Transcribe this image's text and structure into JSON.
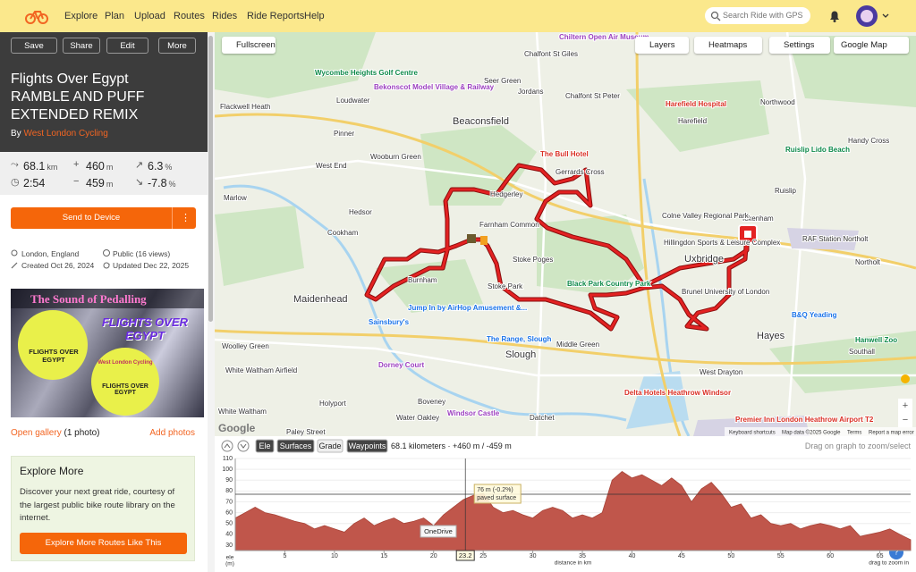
{
  "nav": {
    "links": [
      "Explore",
      "Plan",
      "Upload",
      "Routes",
      "Rides",
      "Ride Reports",
      "Help"
    ],
    "search": "Search Ride with GPS"
  },
  "route": {
    "actions": [
      "Save",
      "Share",
      "Edit",
      "More"
    ],
    "title_lines": [
      "Flights Over Egypt",
      "RAMBLE AND PUFF",
      "EXTENDED REMIX"
    ],
    "by": "By",
    "author": "West London Cycling",
    "stats": [
      {
        "value": "68.1",
        "unit": "km"
      },
      {
        "value": "460",
        "unit": "m"
      },
      {
        "value": "6.3",
        "unit": "%"
      },
      {
        "value": "2:54",
        "unit": ""
      },
      {
        "value": "459",
        "unit": "m"
      },
      {
        "value": "-7.8",
        "unit": "%"
      }
    ],
    "send": "Send to Device",
    "info": [
      "London, England",
      "Public (16 views)",
      "Created Oct 26, 2024",
      "Updated Dec 22, 2025"
    ],
    "gallery": "Open gallery",
    "gallery_count": "(1 photo)",
    "add_photos": "Add photos"
  },
  "image": {
    "banner": "The Sound of Pedalling",
    "side": "FLIGHTS OVER EGYPT",
    "club": "West London Cycling",
    "disc": "FLIGHTS OVER EGYPT"
  },
  "explore": {
    "title": "Explore More",
    "text": "Discover your next great ride, courtesy of the largest public bike route library on the internet.",
    "button": "Explore More Routes Like This"
  },
  "map": {
    "controls": [
      "Fullscreen",
      "Layers",
      "Heatmaps",
      "Settings",
      "Google Map"
    ],
    "labels": [
      "Chiltern Open Air Museum",
      "Chalfont St Giles",
      "Wycombe Heights Golf Centre",
      "Bekonscot Model Village & Railway",
      "Loudwater",
      "Seer Green",
      "Jordans",
      "Chalfont St Peter",
      "Beaconsfield",
      "Harefield Hospital",
      "Harefield",
      "Northwood",
      "Handy Cross",
      "Flackwell Heath",
      "Pinner",
      "Wooburn Green",
      "West End",
      "The Bull Hotel",
      "Gerrards Cross",
      "Hedgerley",
      "Ruislip Lido Beach",
      "Ruislip",
      "Ickenham",
      "Marlow",
      "Hedsor",
      "Cookham",
      "Farnham Common",
      "Colne Valley Regional Park",
      "Hillingdon Sports & Leisure Complex",
      "RAF Station Northolt",
      "Uxbridge",
      "Northolt",
      "Burnham",
      "Stoke Poges",
      "Black Park Country Park",
      "Brunel University of London",
      "Stoke Park",
      "Maidenhead",
      "Jump In by AirHop Amusement &...",
      "Sainsbury's",
      "Hayes",
      "B&Q Yeading",
      "Woolley Green",
      "The Range, Slough",
      "Middle Green",
      "Slough",
      "Hanwell Zoo",
      "White Waltham Airfield",
      "Dorney Court",
      "West Drayton",
      "Southall",
      "Holyport",
      "Delta Hotels Heathrow Windsor",
      "Boveney",
      "Windsor Castle",
      "Water Oakley",
      "Datchet",
      "White Waltham",
      "Paley Street",
      "Premier Inn London Heathrow Airport T2"
    ],
    "footer": [
      "Keyboard shortcuts",
      "Map data ©2025 Google",
      "Terms",
      "Report a map error"
    ],
    "brand": "Google"
  },
  "elevation": {
    "tabs": [
      "Ele",
      "Surfaces",
      "Grade",
      "Waypoints"
    ],
    "summary": "68.1 kilometers · +460 m / -459 m",
    "hint": "Drag on graph to zoom/select",
    "ylabel": [
      "ele",
      "(m)"
    ],
    "xlabel": "distance in km",
    "zoom_hint": "drag to zoom in",
    "tooltip": "OneDrive",
    "cursor": {
      "x": 23.2,
      "label": "76 m (-0.2%)",
      "surface": "paved surface"
    },
    "xlim": [
      0,
      68.1
    ],
    "ylim": [
      25,
      110
    ],
    "xticks": [
      5,
      10,
      15,
      20,
      25,
      30,
      35,
      40,
      45,
      50,
      55,
      60,
      65
    ],
    "yticks": [
      30,
      40,
      50,
      60,
      70,
      80,
      90,
      100,
      110
    ],
    "color": "#c0564b",
    "x": [
      0,
      1,
      2,
      3,
      4,
      5,
      6,
      7,
      8,
      9,
      10,
      11,
      12,
      13,
      14,
      15,
      16,
      17,
      18,
      19,
      20,
      21,
      22,
      23,
      24,
      25,
      26,
      27,
      28,
      29,
      30,
      31,
      32,
      33,
      34,
      35,
      36,
      37,
      38,
      39,
      40,
      41,
      42,
      43,
      44,
      45,
      46,
      47,
      48,
      49,
      50,
      51,
      52,
      53,
      54,
      55,
      56,
      57,
      58,
      59,
      60,
      61,
      62,
      63,
      64,
      65,
      66,
      67,
      68.1
    ],
    "values": [
      55,
      60,
      65,
      60,
      58,
      55,
      52,
      50,
      45,
      48,
      45,
      42,
      50,
      55,
      48,
      52,
      55,
      50,
      52,
      55,
      48,
      58,
      65,
      72,
      76,
      78,
      65,
      60,
      62,
      58,
      55,
      62,
      65,
      62,
      55,
      58,
      55,
      60,
      90,
      98,
      92,
      95,
      90,
      85,
      92,
      85,
      70,
      82,
      88,
      78,
      65,
      68,
      55,
      58,
      50,
      48,
      50,
      45,
      48,
      50,
      48,
      45,
      48,
      38,
      40,
      42,
      45,
      40,
      35
    ]
  }
}
